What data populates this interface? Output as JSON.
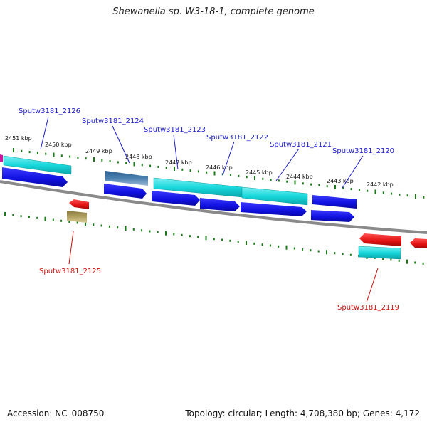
{
  "title": "Shewanella sp. W3-18-1, complete genome",
  "footer": {
    "accession": "Accession: NC_008750",
    "summary": "Topology: circular; Length: 4,708,380 bp; Genes: 4,172"
  },
  "scale": {
    "kbp_labels": [
      "2451 kbp",
      "2450 kbp",
      "2449 kbp",
      "2448 kbp",
      "2447 kbp",
      "2446 kbp",
      "2445 kbp",
      "2444 kbp",
      "2443 kbp",
      "2442 kbp"
    ]
  },
  "genes_top": [
    {
      "id": "Sputw3181_2126",
      "label": "Sputw3181_2126"
    },
    {
      "id": "Sputw3181_2124",
      "label": "Sputw3181_2124"
    },
    {
      "id": "Sputw3181_2123",
      "label": "Sputw3181_2123"
    },
    {
      "id": "Sputw3181_2122",
      "label": "Sputw3181_2122"
    },
    {
      "id": "Sputw3181_2121",
      "label": "Sputw3181_2121"
    },
    {
      "id": "Sputw3181_2120",
      "label": "Sputw3181_2120"
    }
  ],
  "genes_bottom": [
    {
      "id": "Sputw3181_2125",
      "label": "Sputw3181_2125"
    },
    {
      "id": "Sputw3181_2119",
      "label": "Sputw3181_2119"
    }
  ],
  "colors": {
    "forward_label": "#1a1ad0",
    "reverse_label": "#d01010",
    "cds_forward": "#1010e0",
    "cds_reverse": "#e01010",
    "feature_cyan": "#19d8dc",
    "feature_steel": "#4a7fb0",
    "feature_khaki": "#b0a060",
    "tick": "#1a7a1a",
    "backbone": "#8a8a8a"
  }
}
